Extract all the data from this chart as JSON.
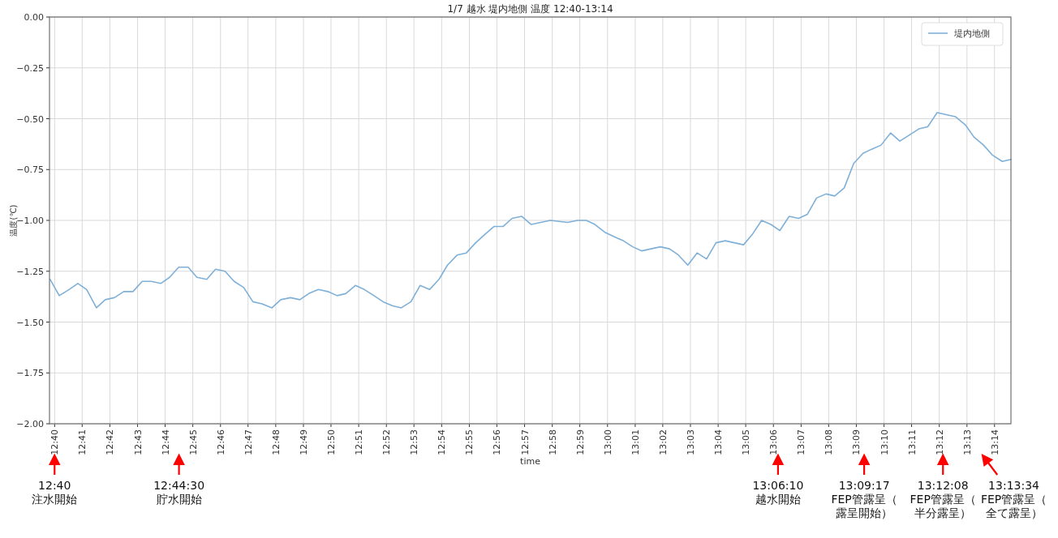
{
  "chart_data": {
    "type": "line",
    "title": "1/7 越水 堤内地側 温度 12:40-13:14",
    "xlabel": "time",
    "ylabel": "温度(℃)",
    "series": [
      {
        "name": "堤内地側",
        "color": "#7fb0d8",
        "x": [
          12.664,
          12.6695,
          12.6754,
          12.6807,
          12.686,
          12.6919,
          12.6972,
          12.7027,
          12.7084,
          12.7139,
          12.7195,
          12.7249,
          12.7307,
          12.736,
          12.7415,
          12.7472,
          12.7525,
          12.7584,
          12.7637,
          12.7694,
          12.7749,
          12.7807,
          12.7862,
          12.7917,
          12.7977,
          12.803,
          12.8089,
          12.8145,
          12.8199,
          12.8257,
          12.8314,
          12.837,
          12.8422,
          12.848,
          12.8534,
          12.8592,
          12.8647,
          12.8705,
          12.8757,
          12.8815,
          12.887,
          12.8927,
          12.8984,
          12.9035,
          12.9094,
          12.9149,
          12.9205,
          12.9259,
          12.9315,
          12.937,
          12.9425,
          12.9482,
          12.954,
          12.9655,
          12.9759,
          12.982,
          12.9872,
          12.9924,
          12.9987,
          13.0039,
          13.0095,
          13.0152,
          13.0207,
          13.0262,
          13.0319,
          13.0374,
          13.0427,
          13.0484,
          13.054,
          13.0597,
          13.0654,
          13.071,
          13.0764,
          13.082,
          13.0872,
          13.0929,
          13.0985,
          13.1039,
          13.1095,
          13.1152,
          13.1205,
          13.126,
          13.1317,
          13.137,
          13.1427,
          13.1484,
          13.154,
          13.1592,
          13.1649,
          13.1707,
          13.1762,
          13.182,
          13.1877,
          13.193,
          13.1987,
          13.2042,
          13.2097,
          13.2157,
          13.2209,
          13.2267,
          13.2322,
          13.238,
          13.2432
        ],
        "values": [
          -1.29,
          -1.37,
          -1.34,
          -1.31,
          -1.34,
          -1.43,
          -1.39,
          -1.38,
          -1.35,
          -1.35,
          -1.3,
          -1.3,
          -1.31,
          -1.28,
          -1.23,
          -1.23,
          -1.28,
          -1.29,
          -1.24,
          -1.25,
          -1.3,
          -1.33,
          -1.4,
          -1.41,
          -1.43,
          -1.39,
          -1.38,
          -1.39,
          -1.36,
          -1.34,
          -1.35,
          -1.37,
          -1.36,
          -1.32,
          -1.34,
          -1.37,
          -1.4,
          -1.42,
          -1.43,
          -1.4,
          -1.32,
          -1.34,
          -1.29,
          -1.22,
          -1.17,
          -1.16,
          -1.11,
          -1.07,
          -1.03,
          -1.03,
          -0.99,
          -0.98,
          -1.02,
          -1.0,
          -1.01,
          -1.0,
          -1.0,
          -1.02,
          -1.06,
          -1.08,
          -1.1,
          -1.13,
          -1.15,
          -1.14,
          -1.13,
          -1.14,
          -1.17,
          -1.22,
          -1.16,
          -1.19,
          -1.11,
          -1.1,
          -1.11,
          -1.12,
          -1.07,
          -1.0,
          -1.02,
          -1.05,
          -0.98,
          -0.99,
          -0.97,
          -0.89,
          -0.87,
          -0.88,
          -0.84,
          -0.72,
          -0.67,
          -0.65,
          -0.63,
          -0.57,
          -0.61,
          -0.58,
          -0.55,
          -0.54,
          -0.47,
          -0.48,
          -0.49,
          -0.53,
          -0.59,
          -0.63,
          -0.68,
          -0.71,
          -0.7
        ]
      }
    ],
    "xlim": [
      12.6636,
      13.2432
    ],
    "ylim": [
      -2,
      0
    ],
    "xticks": [
      {
        "value": 12.6667,
        "label": "12:40"
      },
      {
        "value": 12.6833,
        "label": "12:41"
      },
      {
        "value": 12.7,
        "label": "12:42"
      },
      {
        "value": 12.7167,
        "label": "12:43"
      },
      {
        "value": 12.7333,
        "label": "12:44"
      },
      {
        "value": 12.75,
        "label": "12:45"
      },
      {
        "value": 12.7667,
        "label": "12:46"
      },
      {
        "value": 12.7833,
        "label": "12:47"
      },
      {
        "value": 12.8,
        "label": "12:48"
      },
      {
        "value": 12.8167,
        "label": "12:49"
      },
      {
        "value": 12.8333,
        "label": "12:50"
      },
      {
        "value": 12.85,
        "label": "12:51"
      },
      {
        "value": 12.8667,
        "label": "12:52"
      },
      {
        "value": 12.8833,
        "label": "12:53"
      },
      {
        "value": 12.9,
        "label": "12:54"
      },
      {
        "value": 12.9167,
        "label": "12:55"
      },
      {
        "value": 12.9333,
        "label": "12:56"
      },
      {
        "value": 12.95,
        "label": "12:57"
      },
      {
        "value": 12.9667,
        "label": "12:58"
      },
      {
        "value": 12.9833,
        "label": "12:59"
      },
      {
        "value": 13,
        "label": "13:00"
      },
      {
        "value": 13.0167,
        "label": "13:01"
      },
      {
        "value": 13.0333,
        "label": "13:02"
      },
      {
        "value": 13.05,
        "label": "13:03"
      },
      {
        "value": 13.0667,
        "label": "13:04"
      },
      {
        "value": 13.0833,
        "label": "13:05"
      },
      {
        "value": 13.1,
        "label": "13:06"
      },
      {
        "value": 13.1167,
        "label": "13:07"
      },
      {
        "value": 13.1333,
        "label": "13:08"
      },
      {
        "value": 13.15,
        "label": "13:09"
      },
      {
        "value": 13.1667,
        "label": "13:10"
      },
      {
        "value": 13.1833,
        "label": "13:11"
      },
      {
        "value": 13.2,
        "label": "13:12"
      },
      {
        "value": 13.2167,
        "label": "13:13"
      },
      {
        "value": 13.2333,
        "label": "13:14"
      }
    ],
    "yticks": [
      {
        "value": -2,
        "label": "−2.00"
      },
      {
        "value": -1.75,
        "label": "−1.75"
      },
      {
        "value": -1.5,
        "label": "−1.50"
      },
      {
        "value": -1.25,
        "label": "−1.25"
      },
      {
        "value": -1,
        "label": "−1.00"
      },
      {
        "value": -0.75,
        "label": "−0.75"
      },
      {
        "value": -0.5,
        "label": "−0.50"
      },
      {
        "value": -0.25,
        "label": "−0.25"
      },
      {
        "value": 0,
        "label": "0.00"
      }
    ],
    "grid": true,
    "legend": "top right",
    "annotations": [
      "12:40\n注水開始",
      "12:44:30\n貯水開始",
      "13:06:10\n越水開始",
      "13:09:17\nFEP管露呈（露呈開始）",
      "13:12:08\nFEP管露呈（半分露呈）",
      "13:13:34\nFEP管露呈（全て露呈）"
    ]
  }
}
